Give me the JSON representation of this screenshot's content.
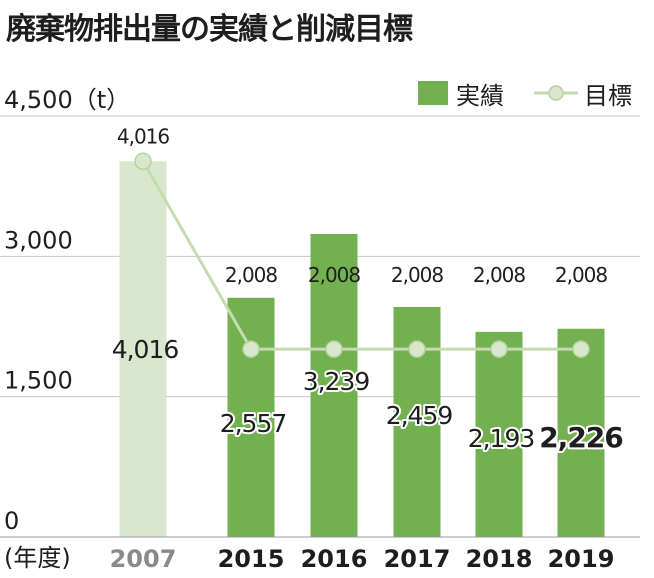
{
  "title": "廃棄物排出量の実績と削減目標",
  "legend": {
    "actual": "実績",
    "target": "目標"
  },
  "unit_label": "4,500（t）",
  "x_unit_label": "(年度)",
  "colors": {
    "actual_bar": "#73b050",
    "baseline_bar": "#d9e8cc",
    "target_line": "#c4dcb0",
    "target_marker_fill": "#d9e8cc",
    "grid": "#c8c8c8",
    "baseline_year_label": "#8a8a8a"
  },
  "chart_data": {
    "type": "bar",
    "categories": [
      "2007",
      "2015",
      "2016",
      "2017",
      "2018",
      "2019"
    ],
    "series": [
      {
        "name": "実績",
        "values": [
          4016,
          2557,
          3239,
          2459,
          2193,
          2226
        ],
        "labels": [
          "4,016",
          "2,557",
          "3,239",
          "2,459",
          "2,193",
          "2,226"
        ]
      },
      {
        "name": "目標",
        "type": "line",
        "values": [
          4016,
          2008,
          2008,
          2008,
          2008,
          2008
        ],
        "labels": [
          "4,016",
          "2,008",
          "2,008",
          "2,008",
          "2,008",
          "2,008"
        ]
      }
    ],
    "ylim": [
      0,
      4500
    ],
    "yticks": [
      0,
      1500,
      3000,
      4500
    ],
    "ytick_labels": [
      "0",
      "1,500",
      "3,000",
      ""
    ],
    "grid": true,
    "legend_position": "top-right",
    "highlight_last": true,
    "baseline_category": "2007"
  }
}
